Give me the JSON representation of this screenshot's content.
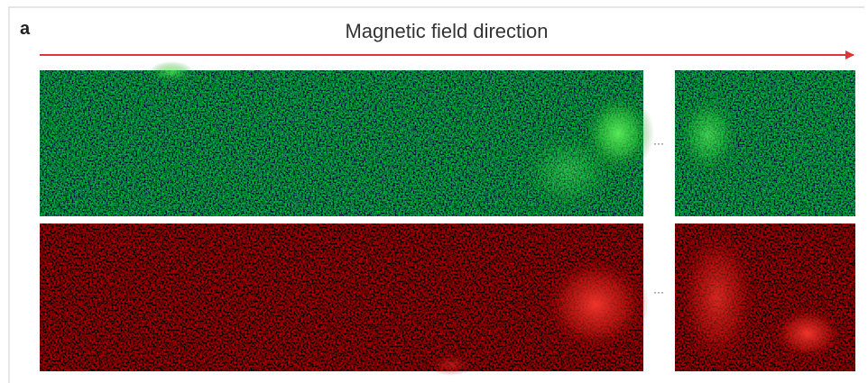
{
  "panel_label": "a",
  "title": "Magnetic field direction",
  "gap_markers": [
    "···",
    "···"
  ]
}
